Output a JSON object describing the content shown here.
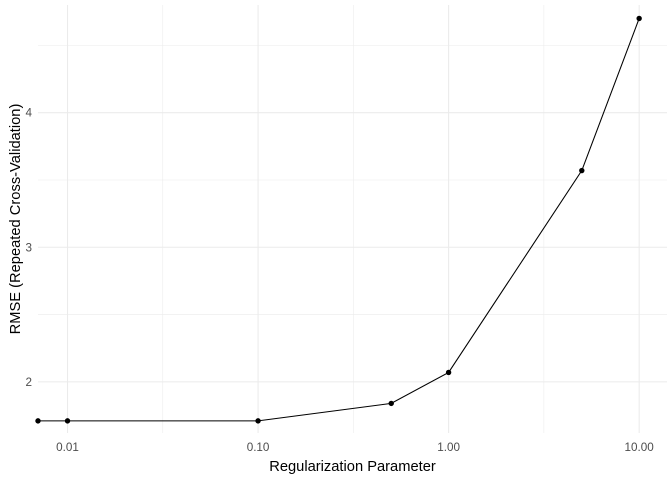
{
  "chart_data": {
    "type": "line",
    "xlabel": "Regularization Parameter",
    "ylabel": "RMSE (Repeated Cross-Validation)",
    "x_scale": "log10",
    "xlim": [
      0.007,
      14.0
    ],
    "ylim": [
      1.62,
      4.8
    ],
    "x_ticks": [
      {
        "value": 0.01,
        "label": "0.01"
      },
      {
        "value": 0.1,
        "label": "0.10"
      },
      {
        "value": 1,
        "label": "1.00"
      },
      {
        "value": 10,
        "label": "10.00"
      }
    ],
    "y_ticks": [
      {
        "value": 2,
        "label": "2"
      },
      {
        "value": 3,
        "label": "3"
      },
      {
        "value": 4,
        "label": "4"
      }
    ],
    "grid": true,
    "series": [
      {
        "x": [
          0.007,
          0.01,
          0.1,
          0.5,
          1,
          5,
          10
        ],
        "y": [
          1.71,
          1.71,
          1.71,
          1.84,
          2.07,
          3.57,
          4.7
        ]
      }
    ],
    "colors": {
      "line": "#000000",
      "point": "#000000",
      "grid": "#ebebeb",
      "tick_text": "#4d4d4d"
    }
  }
}
